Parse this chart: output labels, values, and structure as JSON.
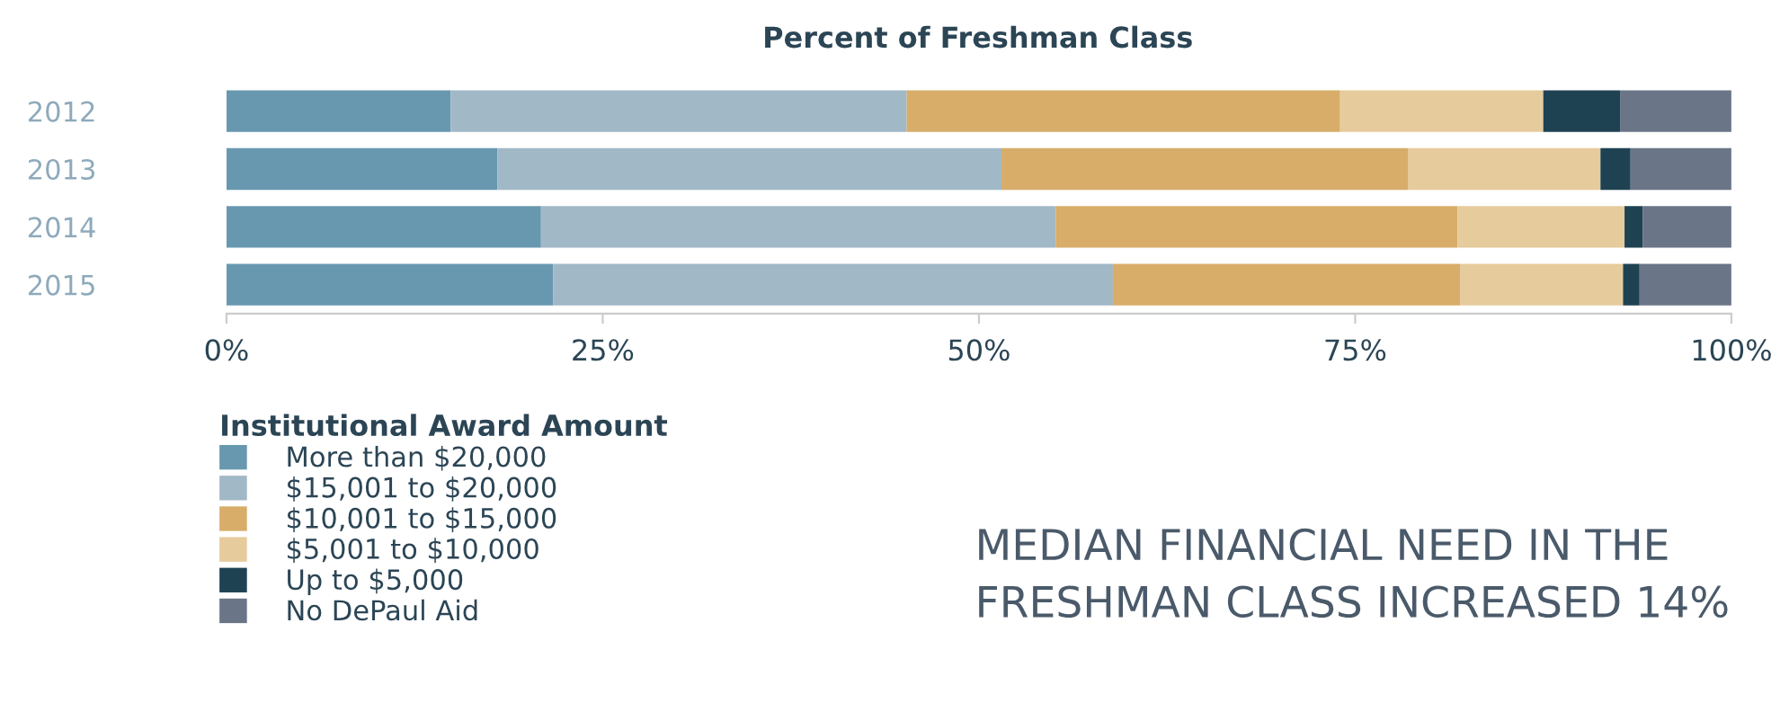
{
  "chart_data": {
    "type": "bar",
    "orientation": "horizontal",
    "stacked": true,
    "title": "Percent of Freshman Class",
    "categories": [
      "2012",
      "2013",
      "2014",
      "2015"
    ],
    "series": [
      {
        "name": "More than $20,000",
        "color": "#6898af",
        "values": [
          14.9,
          18.0,
          20.9,
          21.7
        ]
      },
      {
        "name": "$15,001 to $20,000",
        "color": "#a1b8c6",
        "values": [
          30.3,
          33.5,
          34.2,
          37.2
        ]
      },
      {
        "name": "$10,001 to $15,000",
        "color": "#d8ad69",
        "values": [
          28.8,
          27.0,
          26.7,
          23.1
        ]
      },
      {
        "name": "$5,001 to $10,000",
        "color": "#e6cb9c",
        "values": [
          13.5,
          12.8,
          11.1,
          10.8
        ]
      },
      {
        "name": "Up to $5,000",
        "color": "#1f4253",
        "values": [
          5.1,
          2.0,
          1.2,
          1.1
        ]
      },
      {
        "name": "No DePaul Aid",
        "color": "#6a7687",
        "values": [
          7.4,
          6.7,
          5.9,
          6.1
        ]
      }
    ],
    "xlim": [
      0,
      100
    ],
    "xticks": [
      {
        "value": 0,
        "label": "0%"
      },
      {
        "value": 25,
        "label": "25%"
      },
      {
        "value": 50,
        "label": "50%"
      },
      {
        "value": 75,
        "label": "75%"
      },
      {
        "value": 100,
        "label": "100%"
      }
    ],
    "legend": "bottom",
    "legend_title": "Institutional Award Amount",
    "grid": false,
    "annotations": [
      "MEDIAN FINANCIAL NEED IN THE FRESHMAN CLASS INCREASED 14%"
    ]
  }
}
